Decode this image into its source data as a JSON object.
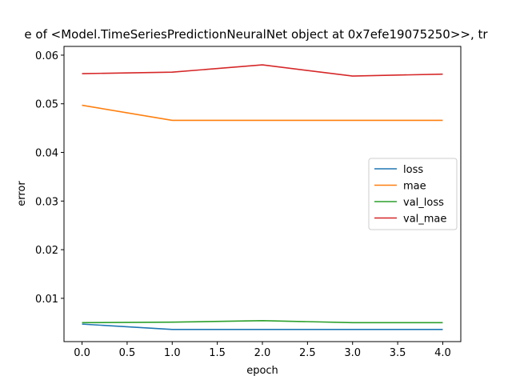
{
  "chart_data": {
    "type": "line",
    "title": "e of <Model.TimeSeriesPredictionNeuralNet object at 0x7efe19075250>>, tr",
    "xlabel": "epoch",
    "ylabel": "error",
    "x": [
      0,
      1,
      2,
      3,
      4
    ],
    "xlim": [
      -0.2,
      4.2
    ],
    "ylim": [
      0.0011,
      0.0618
    ],
    "xticks": [
      "0.0",
      "0.5",
      "1.0",
      "1.5",
      "2.0",
      "2.5",
      "3.0",
      "3.5",
      "4.0"
    ],
    "yticks": [
      "0.01",
      "0.02",
      "0.03",
      "0.04",
      "0.05",
      "0.06"
    ],
    "grid": false,
    "legend_position": "center-right",
    "series": [
      {
        "name": "loss",
        "color": "#1f77b4",
        "values": [
          0.0047,
          0.0036,
          0.0036,
          0.0036,
          0.0036
        ]
      },
      {
        "name": "mae",
        "color": "#ff7f0e",
        "values": [
          0.0497,
          0.0466,
          0.0466,
          0.0466,
          0.0466
        ]
      },
      {
        "name": "val_loss",
        "color": "#2ca02c",
        "values": [
          0.005,
          0.0051,
          0.0054,
          0.005,
          0.005
        ]
      },
      {
        "name": "val_mae",
        "color": "#d62728",
        "values": [
          0.0562,
          0.0565,
          0.058,
          0.0557,
          0.0561
        ]
      }
    ]
  }
}
